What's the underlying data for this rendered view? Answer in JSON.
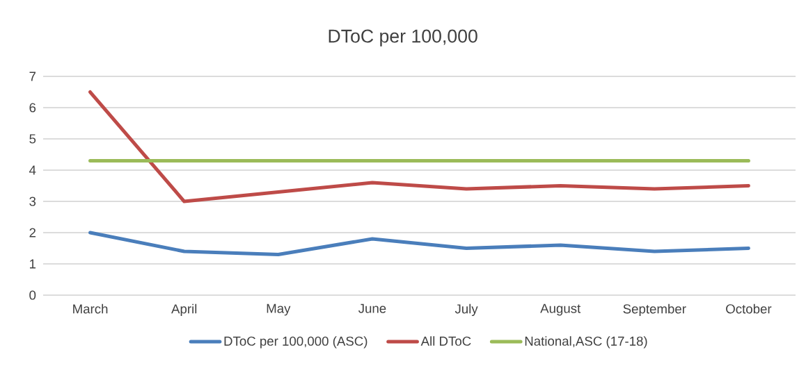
{
  "chart_data": {
    "type": "line",
    "title": "DToC per 100,000",
    "categories": [
      "March",
      "April",
      "May",
      "June",
      "July",
      "August",
      "September",
      "October"
    ],
    "series": [
      {
        "name": "DToC per 100,000 (ASC)",
        "color": "#4a7ebb",
        "values": [
          2.0,
          1.4,
          1.3,
          1.8,
          1.5,
          1.6,
          1.4,
          1.5
        ]
      },
      {
        "name": "All DToC",
        "color": "#be4b48",
        "values": [
          6.5,
          3.0,
          3.3,
          3.6,
          3.4,
          3.5,
          3.4,
          3.5
        ]
      },
      {
        "name": "National,ASC (17-18)",
        "color": "#9bbb59",
        "values": [
          4.3,
          4.3,
          4.3,
          4.3,
          4.3,
          4.3,
          4.3,
          4.3
        ]
      }
    ],
    "ylim": [
      0,
      7
    ],
    "yticks": [
      0,
      1,
      2,
      3,
      4,
      5,
      6,
      7
    ],
    "grid": "y",
    "legend": "bottom",
    "marker": "none",
    "line_style": "solid"
  }
}
